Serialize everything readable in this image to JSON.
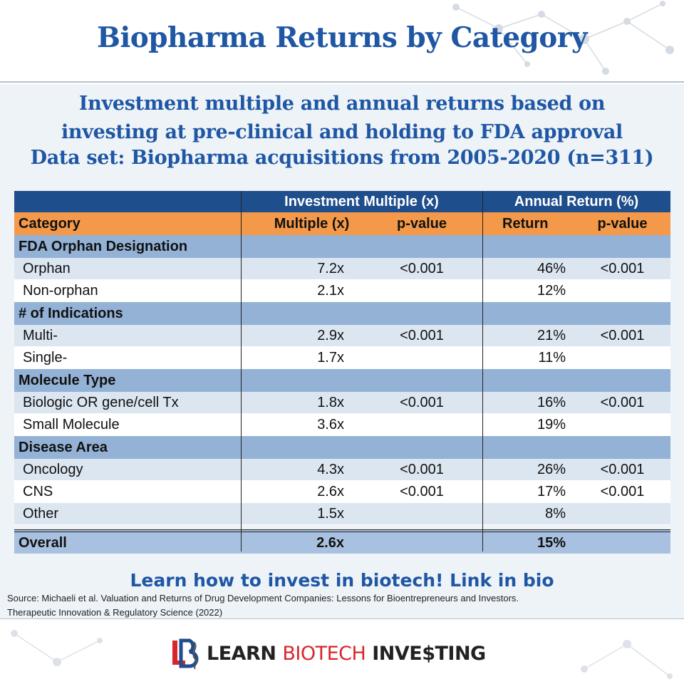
{
  "title": "Biopharma Returns by Category",
  "subtitle": {
    "line1": "Investment multiple and annual returns based on",
    "line2": "investing at pre-clinical and holding to FDA approval",
    "line3": "Data set: Biopharma acquisitions from 2005-2020 (n=311)"
  },
  "table": {
    "group_headers": {
      "multiple": "Investment Multiple (x)",
      "return": "Annual Return (%)"
    },
    "columns": {
      "category": "Category",
      "multiple": "Multiple (x)",
      "multiple_p": "p-value",
      "return": "Return",
      "return_p": "p-value"
    },
    "sections": [
      {
        "name": "FDA Orphan Designation",
        "rows": [
          {
            "category": "Orphan",
            "multiple": "7.2x",
            "multiple_p": "<0.001",
            "return": "46%",
            "return_p": "<0.001"
          },
          {
            "category": "Non-orphan",
            "multiple": "2.1x",
            "multiple_p": "",
            "return": "12%",
            "return_p": ""
          }
        ]
      },
      {
        "name": "# of Indications",
        "rows": [
          {
            "category": "Multi-",
            "multiple": "2.9x",
            "multiple_p": "<0.001",
            "return": "21%",
            "return_p": "<0.001"
          },
          {
            "category": "Single-",
            "multiple": "1.7x",
            "multiple_p": "",
            "return": "11%",
            "return_p": ""
          }
        ]
      },
      {
        "name": "Molecule Type",
        "rows": [
          {
            "category": "Biologic OR gene/cell Tx",
            "multiple": "1.8x",
            "multiple_p": "<0.001",
            "return": "16%",
            "return_p": "<0.001"
          },
          {
            "category": "Small Molecule",
            "multiple": "3.6x",
            "multiple_p": "",
            "return": "19%",
            "return_p": ""
          }
        ]
      },
      {
        "name": "Disease Area",
        "rows": [
          {
            "category": "Oncology",
            "multiple": "4.3x",
            "multiple_p": "<0.001",
            "return": "26%",
            "return_p": "<0.001"
          },
          {
            "category": "CNS",
            "multiple": "2.6x",
            "multiple_p": "<0.001",
            "return": "17%",
            "return_p": "<0.001"
          },
          {
            "category": "Other",
            "multiple": "1.5x",
            "multiple_p": "",
            "return": "8%",
            "return_p": ""
          }
        ]
      }
    ],
    "overall": {
      "category": "Overall",
      "multiple": "2.6x",
      "return": "15%"
    }
  },
  "cta": "Learn how to invest in biotech! Link in bio",
  "source": {
    "line1": "Source: Michaeli et al. Valuation and Returns of Drug Development Companies: Lessons for Bioentrepreneurs and Investors.",
    "line2": "Therapeutic Innovation & Regulatory Science (2022)"
  },
  "logo": {
    "part1": "LEARN ",
    "part2": "BIO",
    "part3": "TECH",
    "part4": " INVE$TING"
  },
  "colors": {
    "title_blue": "#1f57a4",
    "header_navy": "#1f4e8c",
    "column_orange": "#f39949",
    "section_blue": "#93b2d6",
    "row_alt": "#dce6f1",
    "logo_red": "#d8262b"
  }
}
